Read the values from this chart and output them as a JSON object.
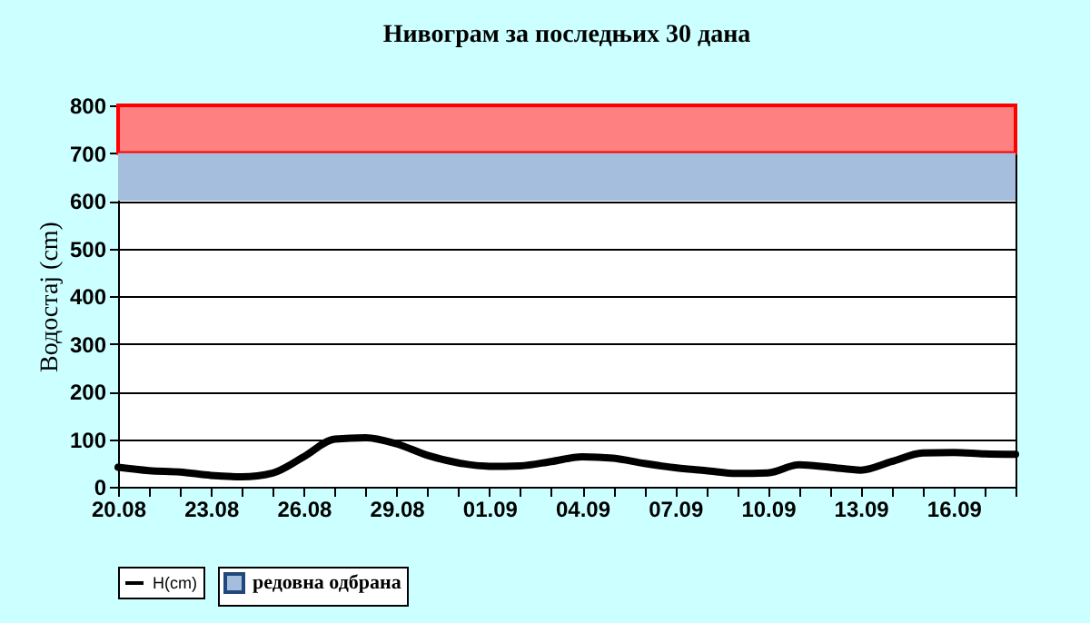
{
  "chart_data": {
    "type": "line",
    "title": "Нивограм за последњих 30 дана",
    "ylabel": "Водостај (cm)",
    "categories": [
      "20.08",
      null,
      null,
      "23.08",
      null,
      null,
      "26.08",
      null,
      null,
      "29.08",
      null,
      null,
      "01.09",
      null,
      null,
      "04.09",
      null,
      null,
      "07.09",
      null,
      null,
      "10.09",
      null,
      null,
      "13.09",
      null,
      null,
      "16.09",
      null,
      null
    ],
    "series": [
      {
        "name": "H(cm)",
        "color": "#000000",
        "values": [
          41,
          34,
          31,
          24,
          21,
          29,
          63,
          100,
          103,
          90,
          66,
          50,
          43,
          44,
          53,
          63,
          60,
          49,
          40,
          34,
          28,
          29,
          46,
          41,
          35,
          53,
          71,
          72,
          69,
          68
        ]
      }
    ],
    "ylim": [
      0,
      800
    ],
    "yticks": [
      0,
      100,
      200,
      300,
      400,
      500,
      600,
      700,
      800
    ],
    "grid": "y",
    "legend": "bottom",
    "marker": "none",
    "line_style": "solid",
    "bands": [
      {
        "axis": "y",
        "from": 600,
        "to": 700,
        "label": "редовна одбрана",
        "color": "#a6bedd"
      },
      {
        "axis": "y",
        "from": 700,
        "to": 800,
        "color": "#ff8080"
      }
    ]
  }
}
